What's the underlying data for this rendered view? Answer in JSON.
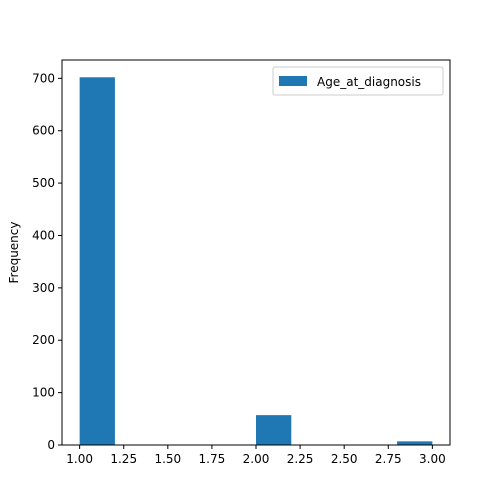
{
  "chart_data": {
    "type": "bar",
    "title": "",
    "xlabel": "",
    "ylabel": "Frequency",
    "xlim": [
      0.9,
      3.1
    ],
    "ylim": [
      0,
      735
    ],
    "x_ticks": [
      "1.00",
      "1.25",
      "1.50",
      "1.75",
      "2.00",
      "2.25",
      "2.50",
      "2.75",
      "3.00"
    ],
    "y_ticks": [
      "0",
      "100",
      "200",
      "300",
      "400",
      "500",
      "600",
      "700"
    ],
    "bin_edges": [
      1.0,
      1.2,
      1.4,
      1.6,
      1.8,
      2.0,
      2.2,
      2.4,
      2.6,
      2.8,
      3.0
    ],
    "series": [
      {
        "name": "Age_at_diagnosis",
        "color": "#1f77b4",
        "values": [
          702,
          0,
          0,
          0,
          0,
          57,
          0,
          0,
          0,
          7
        ]
      }
    ],
    "legend": {
      "placement": "top-right"
    },
    "grid": false
  }
}
